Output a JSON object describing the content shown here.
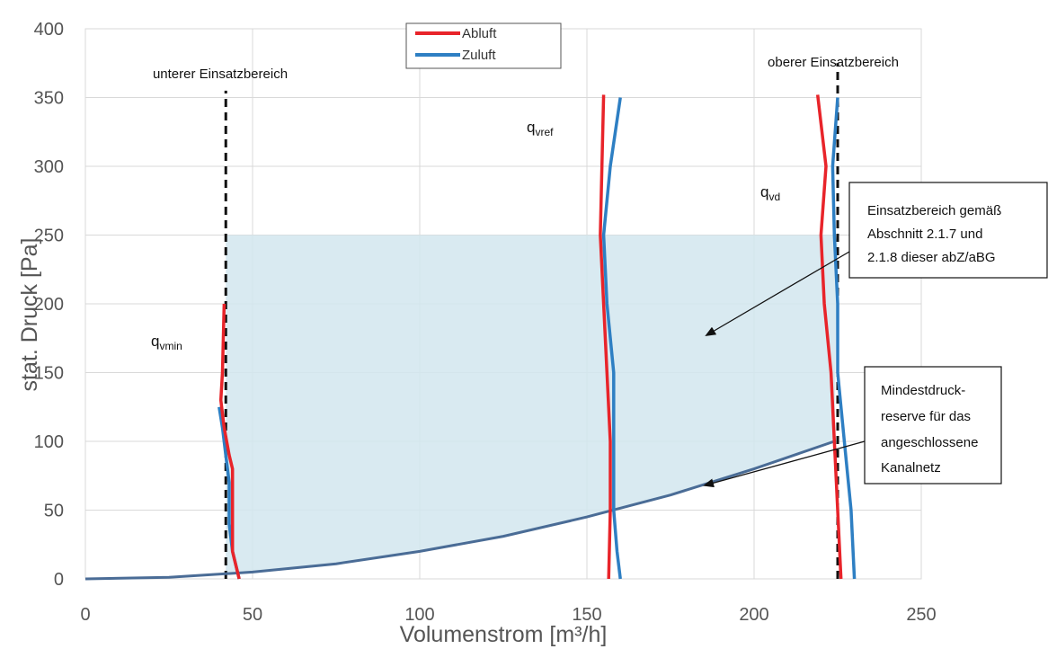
{
  "chart_data": {
    "type": "line",
    "title": "",
    "xlabel": "Volumenstrom [m³/h]",
    "ylabel": "stat. Druck [Pa]",
    "xlim": [
      0,
      250
    ],
    "ylim": [
      0,
      400
    ],
    "xticks": [
      0,
      50,
      100,
      150,
      200,
      250
    ],
    "yticks": [
      0,
      50,
      100,
      150,
      200,
      250,
      300,
      350,
      400
    ],
    "grid": true,
    "legend_position": "top-center",
    "series": [
      {
        "name": "Abluft",
        "color": "#e8242a",
        "segments": [
          [
            [
              41.5,
              200
            ],
            [
              41,
              150
            ],
            [
              40.5,
              130
            ],
            [
              41.5,
              110
            ],
            [
              43,
              90
            ],
            [
              44,
              80
            ],
            [
              44,
              50
            ],
            [
              44,
              20
            ],
            [
              45,
              10
            ],
            [
              46,
              0
            ]
          ],
          [
            [
              155,
              352
            ],
            [
              154.5,
              300
            ],
            [
              154,
              250
            ],
            [
              155,
              200
            ],
            [
              156,
              150
            ],
            [
              157,
              100
            ],
            [
              157,
              50
            ],
            [
              156.5,
              0
            ]
          ],
          [
            [
              219,
              352
            ],
            [
              221.5,
              300
            ],
            [
              220,
              250
            ],
            [
              221,
              200
            ],
            [
              223,
              150
            ],
            [
              224,
              100
            ],
            [
              225,
              50
            ],
            [
              226,
              0
            ]
          ]
        ]
      },
      {
        "name": "Zuluft",
        "color": "#2e7fc3",
        "segments": [
          [
            [
              40,
              125
            ],
            [
              41,
              110
            ],
            [
              42,
              90
            ],
            [
              43,
              70
            ],
            [
              43,
              40
            ],
            [
              44,
              20
            ],
            [
              46,
              0
            ]
          ],
          [
            [
              160,
              350
            ],
            [
              157,
              300
            ],
            [
              155,
              250
            ],
            [
              156,
              200
            ],
            [
              158,
              150
            ],
            [
              158,
              100
            ],
            [
              158,
              50
            ],
            [
              159,
              20
            ],
            [
              160,
              0
            ]
          ],
          [
            [
              225,
              350
            ],
            [
              223.5,
              300
            ],
            [
              224,
              250
            ],
            [
              225,
              200
            ],
            [
              225,
              150
            ],
            [
              227,
              100
            ],
            [
              229,
              50
            ],
            [
              230,
              0
            ]
          ]
        ]
      },
      {
        "name": "",
        "color": "#4a6c96",
        "points": [
          [
            0,
            0
          ],
          [
            25,
            1.2
          ],
          [
            50,
            5
          ],
          [
            75,
            11
          ],
          [
            100,
            20
          ],
          [
            125,
            31
          ],
          [
            150,
            45
          ],
          [
            175,
            61
          ],
          [
            200,
            80
          ],
          [
            224,
            100
          ]
        ]
      }
    ],
    "vlines": [
      {
        "x": 42,
        "from": 0,
        "to": 355,
        "label": "unterer Einsatzbereich"
      },
      {
        "x": 225,
        "from": 0,
        "to": 375,
        "label": "oberer Einsatzbereich"
      }
    ],
    "shaded_region": {
      "x_from": 42,
      "x_to": 225,
      "y_top": 250,
      "bottom_curve_label": "Mindestdruck-reserve",
      "color": "#d2e6ef"
    },
    "curve_labels": [
      {
        "main": "q",
        "sub": "vmin"
      },
      {
        "main": "q",
        "sub": "vref"
      },
      {
        "main": "q",
        "sub": "vd"
      }
    ],
    "annotations": [
      {
        "lines": [
          "Einsatzbereich gemäß",
          "Abschnitt 2.1.7 und",
          "2.1.8 dieser abZ/aBG"
        ]
      },
      {
        "lines": [
          "Mindestdruck-",
          "reserve für das",
          "angeschlossene",
          "Kanalnetz"
        ]
      }
    ]
  }
}
